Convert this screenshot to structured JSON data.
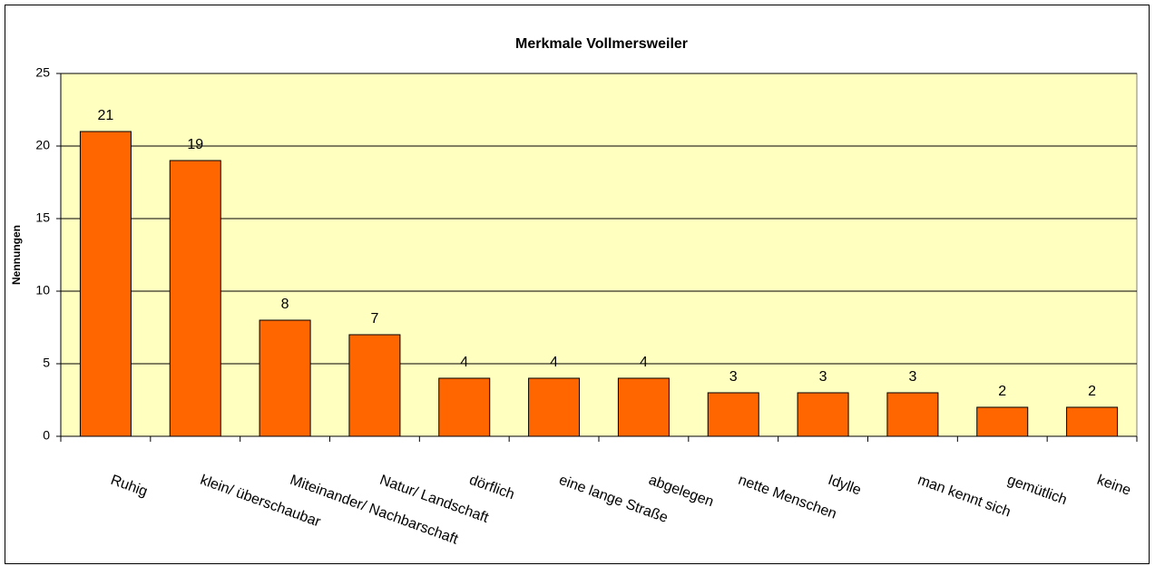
{
  "chart_data": {
    "type": "bar",
    "title": "Merkmale Vollmersweiler",
    "y_label": "Nennungen",
    "categories": [
      "Ruhig",
      "klein/ überschaubar",
      "Miteinander/ Nachbarschaft",
      "Natur/ Landschaft",
      "dörflich",
      "eine lange Straße",
      "abgelegen",
      "nette Menschen",
      "Idylle",
      "man kennt sich",
      "gemütlich",
      "keine"
    ],
    "values": [
      21,
      19,
      8,
      7,
      4,
      4,
      4,
      3,
      3,
      3,
      2,
      2
    ],
    "color": "#ff6600",
    "ylim": [
      0,
      25
    ],
    "yticks": [
      0,
      5,
      10,
      15,
      20,
      25
    ],
    "grid": true
  }
}
